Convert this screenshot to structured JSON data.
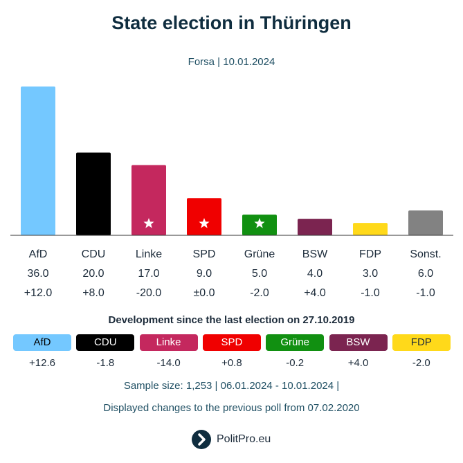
{
  "header": {
    "title": "State election in Thüringen",
    "subtitle": "Forsa | 10.01.2024"
  },
  "chart_data": {
    "type": "bar",
    "title": "State election in Thüringen",
    "subtitle": "Forsa | 10.01.2024",
    "categories": [
      "AfD",
      "CDU",
      "Linke",
      "SPD",
      "Grüne",
      "BSW",
      "FDP",
      "Sonst."
    ],
    "values": [
      36.0,
      20.0,
      17.0,
      9.0,
      5.0,
      4.0,
      3.0,
      6.0
    ],
    "value_labels": [
      "36.0",
      "20.0",
      "17.0",
      "9.0",
      "5.0",
      "4.0",
      "3.0",
      "6.0"
    ],
    "changes": [
      "+12.0",
      "+8.0",
      "-20.0",
      "±0.0",
      "-2.0",
      "+4.0",
      "-1.0",
      "-1.0"
    ],
    "colors": [
      "#74c8ff",
      "#000000",
      "#c4285e",
      "#f00000",
      "#119011",
      "#7b2450",
      "#ffd91a",
      "#828282"
    ],
    "starred": [
      "Linke",
      "SPD",
      "Grüne"
    ],
    "ylim": [
      0,
      36
    ],
    "grid": false,
    "xlabel": "",
    "ylabel": ""
  },
  "development": {
    "title": "Development since the last election on 27.10.2019",
    "items": [
      {
        "party": "AfD",
        "change": "+12.6",
        "color": "#74c8ff",
        "text_color": "#000000"
      },
      {
        "party": "CDU",
        "change": "-1.8",
        "color": "#000000",
        "text_color": "#ffffff"
      },
      {
        "party": "Linke",
        "change": "-14.0",
        "color": "#c4285e",
        "text_color": "#ffffff"
      },
      {
        "party": "SPD",
        "change": "+0.8",
        "color": "#f00000",
        "text_color": "#ffffff"
      },
      {
        "party": "Grüne",
        "change": "-0.2",
        "color": "#119011",
        "text_color": "#ffffff"
      },
      {
        "party": "BSW",
        "change": "+4.0",
        "color": "#7b2450",
        "text_color": "#ffffff"
      },
      {
        "party": "FDP",
        "change": "-2.0",
        "color": "#ffd91a",
        "text_color": "#1c2b3a"
      }
    ]
  },
  "footer": {
    "sample": "Sample size: 1,253 | 06.01.2024 - 10.01.2024 |",
    "note": "Displayed changes to the previous poll from 07.02.2020",
    "brand": "PolitPro.eu",
    "brand_color": "#0f2d3f"
  },
  "icons": {
    "star": "star-icon",
    "logo": "politpro-logo-icon"
  }
}
